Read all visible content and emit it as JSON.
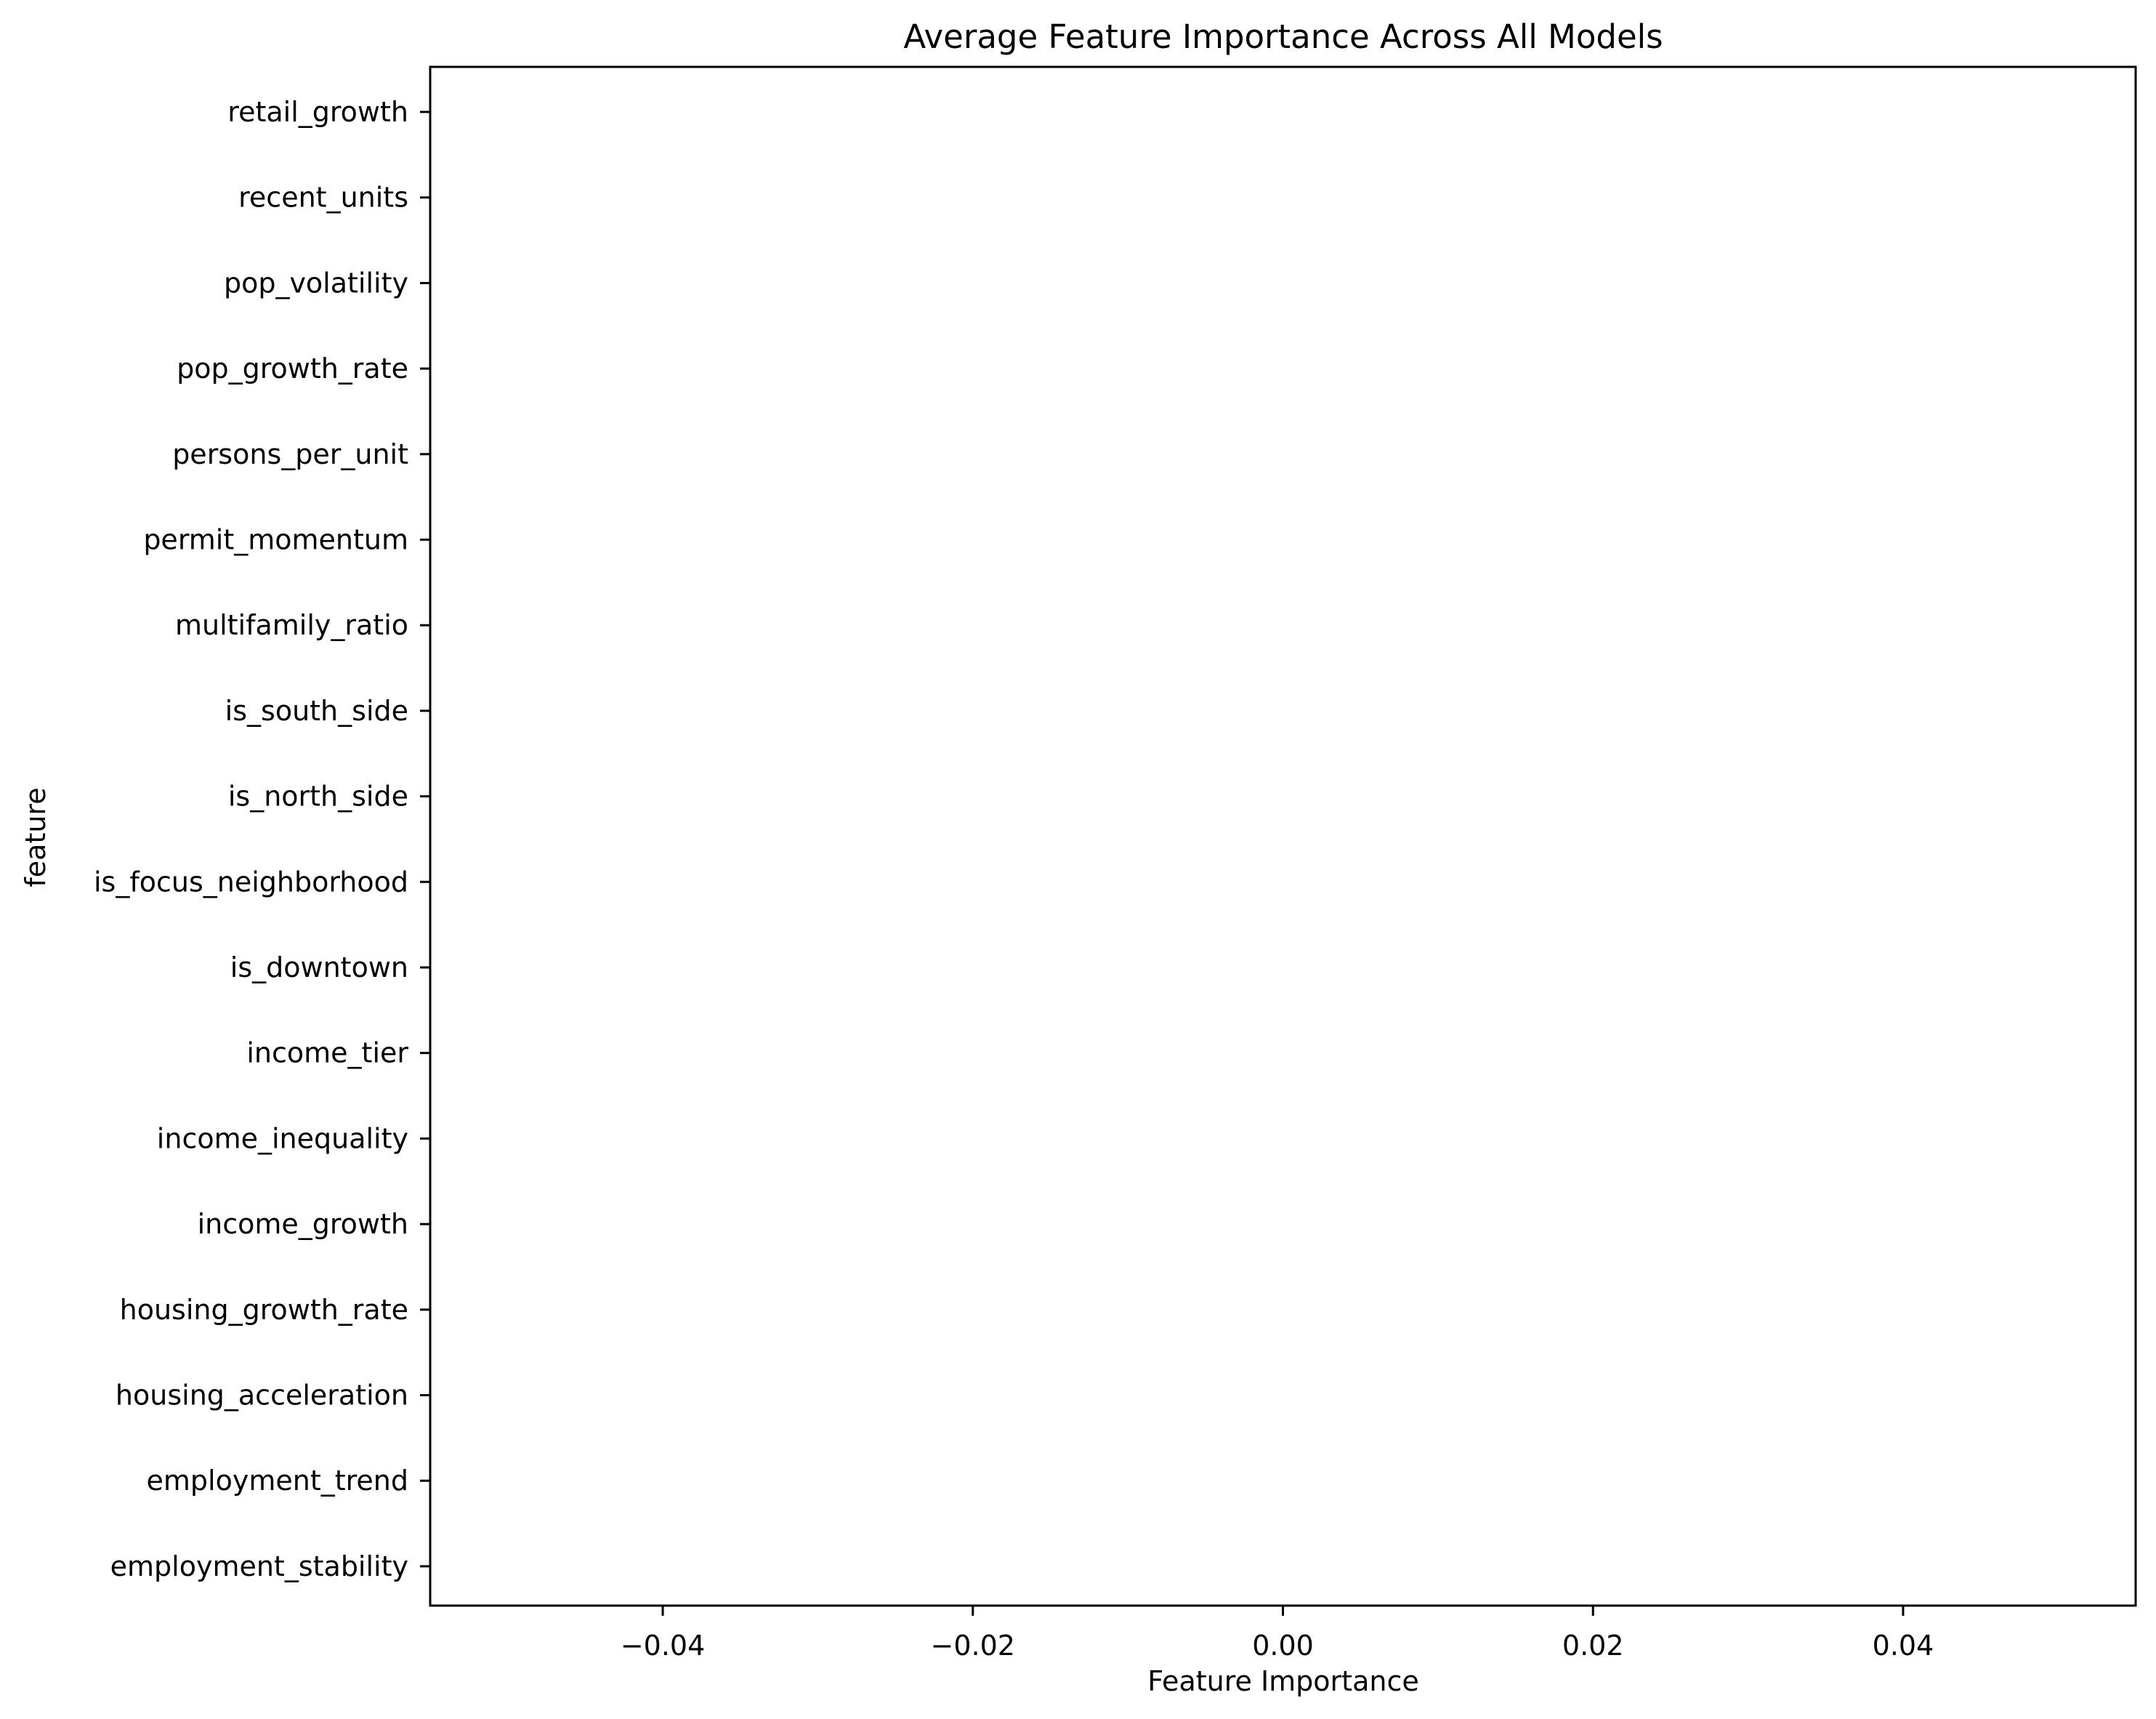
{
  "chart_data": {
    "type": "bar",
    "orientation": "horizontal",
    "title": "Average Feature Importance Across All Models",
    "xlabel": "Feature Importance",
    "ylabel": "feature",
    "xlim": [
      -0.055,
      0.055
    ],
    "xticks": [
      -0.04,
      -0.02,
      0.0,
      0.02,
      0.04
    ],
    "xtick_labels": [
      "−0.04",
      "−0.02",
      "0.00",
      "0.02",
      "0.04"
    ],
    "grid": false,
    "categories": [
      "retail_growth",
      "recent_units",
      "pop_volatility",
      "pop_growth_rate",
      "persons_per_unit",
      "permit_momentum",
      "multifamily_ratio",
      "is_south_side",
      "is_north_side",
      "is_focus_neighborhood",
      "is_downtown",
      "income_tier",
      "income_inequality",
      "income_growth",
      "housing_growth_rate",
      "housing_acceleration",
      "employment_trend",
      "employment_stability"
    ],
    "values": [
      0,
      0,
      0,
      0,
      0,
      0,
      0,
      0,
      0,
      0,
      0,
      0,
      0,
      0,
      0,
      0,
      0,
      0
    ],
    "bar_color": "#1f77b4"
  }
}
